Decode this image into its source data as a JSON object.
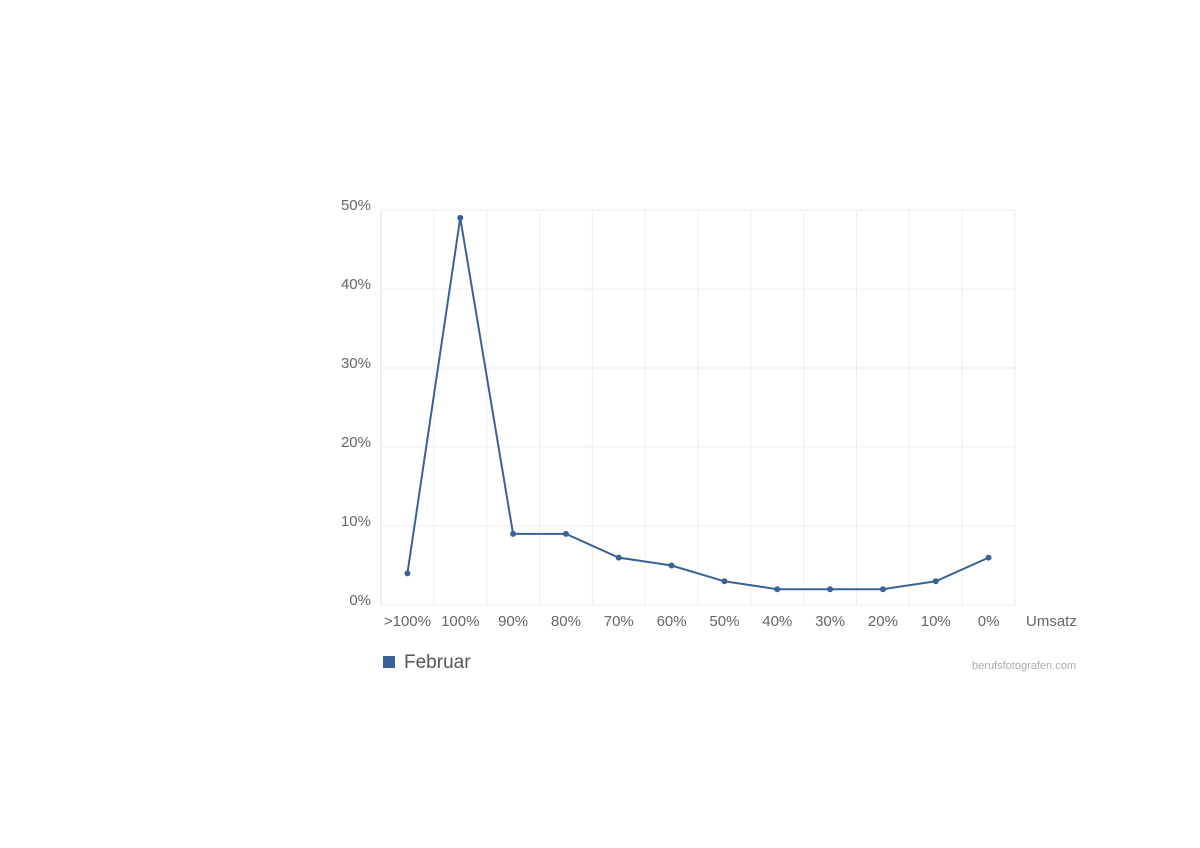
{
  "chart_data": {
    "type": "line",
    "x_label": "Umsatz",
    "categories": [
      ">100%",
      "100%",
      "90%",
      "80%",
      "70%",
      "60%",
      "50%",
      "40%",
      "30%",
      "20%",
      "10%",
      "0%"
    ],
    "series": [
      {
        "name": "Februar",
        "color": "#3a6198",
        "values": [
          4,
          49,
          9,
          9,
          6,
          5,
          3,
          2,
          2,
          2,
          3,
          6
        ]
      }
    ],
    "ylim": [
      0,
      50
    ],
    "yticks": [
      {
        "value": 0,
        "label": "0%"
      },
      {
        "value": 10,
        "label": "10%"
      },
      {
        "value": 20,
        "label": "20%"
      },
      {
        "value": 30,
        "label": "30%"
      },
      {
        "value": 40,
        "label": "40%"
      },
      {
        "value": 50,
        "label": "50%"
      }
    ],
    "grid": true,
    "watermark": "berufsfotografen.com"
  }
}
